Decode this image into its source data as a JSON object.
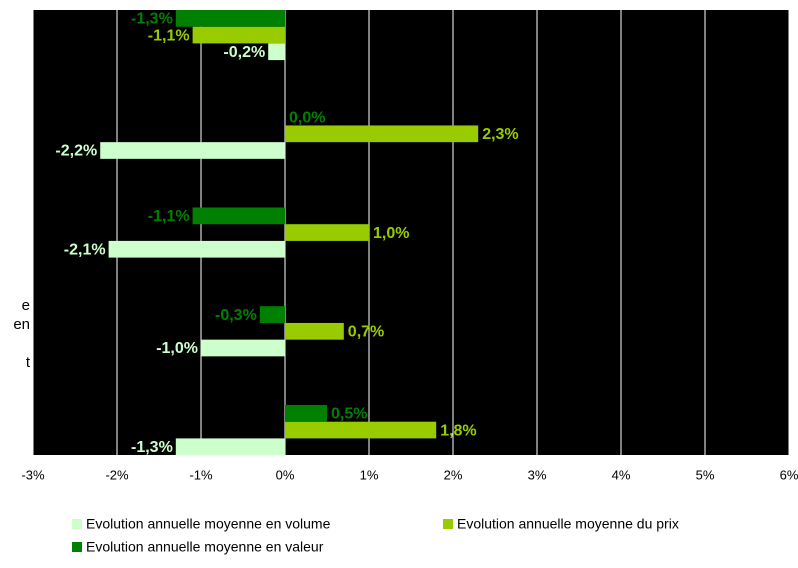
{
  "chart_data": {
    "type": "bar",
    "orientation": "horizontal",
    "categories": [
      null,
      null,
      null,
      null,
      null
    ],
    "annotation": [
      "e",
      "en",
      "t"
    ],
    "series": [
      {
        "name": "Evolution annuelle moyenne en volume",
        "color": "#ccffcc",
        "values": [
          -0.2,
          -2.2,
          -2.1,
          -1.0,
          -1.3
        ],
        "value_labels": [
          "-0,2%",
          "-2,2%",
          "-2,1%",
          "-1,0%",
          "-1,3%"
        ]
      },
      {
        "name": "Evolution annuelle moyenne du prix",
        "color": "#99cc00",
        "values": [
          -1.1,
          2.3,
          1.0,
          0.7,
          1.8
        ],
        "value_labels": [
          "-1,1%",
          "2,3%",
          "1,0%",
          "0,7%",
          "1,8%"
        ]
      },
      {
        "name": "Evolution annuelle moyenne en valeur",
        "color": "#008000",
        "values": [
          -1.3,
          0.0,
          -1.1,
          -0.3,
          0.5
        ],
        "value_labels": [
          "-1,3%",
          "0,0%",
          "-1,1%",
          "-0,3%",
          "0,5%"
        ]
      }
    ],
    "xlim": [
      -3,
      6
    ],
    "xticks": [
      {
        "value": -3,
        "label": "-3%"
      },
      {
        "value": -2,
        "label": "-2%"
      },
      {
        "value": -1,
        "label": "-1%"
      },
      {
        "value": 0,
        "label": "0%"
      },
      {
        "value": 1,
        "label": "1%"
      },
      {
        "value": 2,
        "label": "2%"
      },
      {
        "value": 3,
        "label": "3%"
      },
      {
        "value": 4,
        "label": "4%"
      },
      {
        "value": 5,
        "label": "5%"
      },
      {
        "value": 6,
        "label": "6%"
      }
    ],
    "grid": true,
    "plot_background": "#000000",
    "grid_color": "#ffffff",
    "legend": "bottom"
  }
}
